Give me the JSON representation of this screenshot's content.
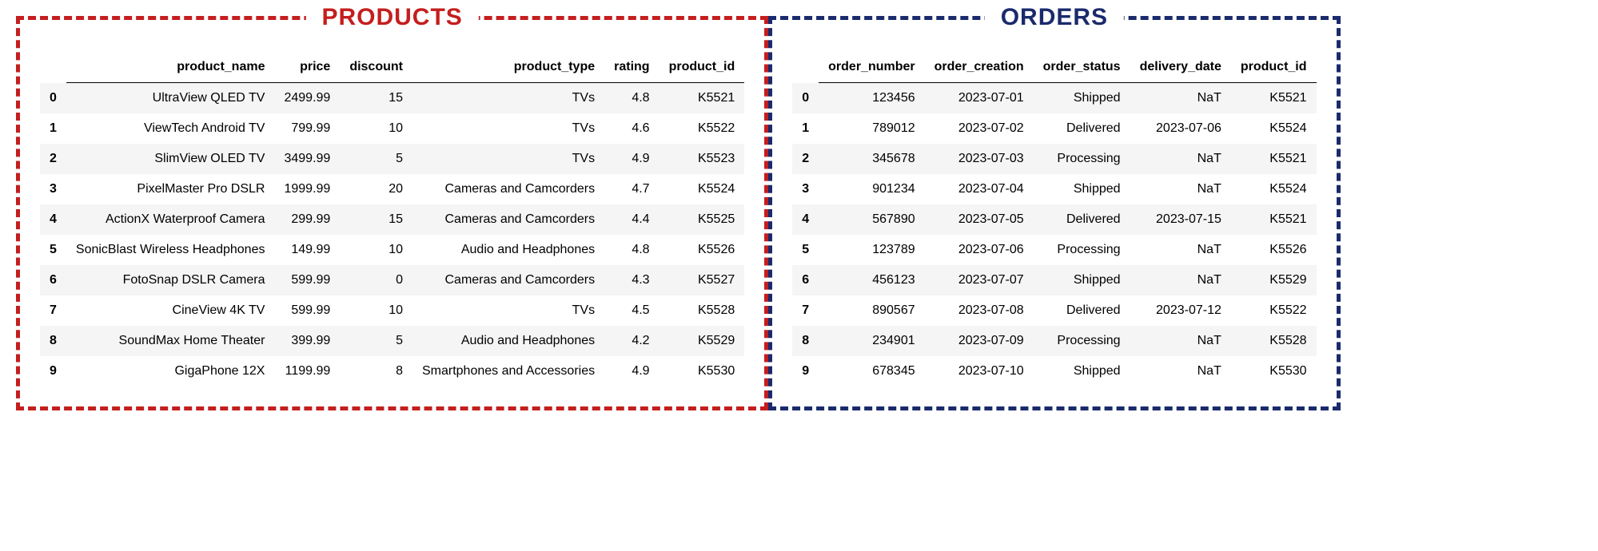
{
  "products_panel": {
    "title": "PRODUCTS",
    "border_color": "#c41e1e",
    "columns": [
      "product_name",
      "price",
      "discount",
      "product_type",
      "rating",
      "product_id"
    ],
    "rows": [
      {
        "idx": "0",
        "product_name": "UltraView QLED TV",
        "price": "2499.99",
        "discount": "15",
        "product_type": "TVs",
        "rating": "4.8",
        "product_id": "K5521"
      },
      {
        "idx": "1",
        "product_name": "ViewTech Android TV",
        "price": "799.99",
        "discount": "10",
        "product_type": "TVs",
        "rating": "4.6",
        "product_id": "K5522"
      },
      {
        "idx": "2",
        "product_name": "SlimView OLED TV",
        "price": "3499.99",
        "discount": "5",
        "product_type": "TVs",
        "rating": "4.9",
        "product_id": "K5523"
      },
      {
        "idx": "3",
        "product_name": "PixelMaster Pro DSLR",
        "price": "1999.99",
        "discount": "20",
        "product_type": "Cameras and Camcorders",
        "rating": "4.7",
        "product_id": "K5524"
      },
      {
        "idx": "4",
        "product_name": "ActionX Waterproof Camera",
        "price": "299.99",
        "discount": "15",
        "product_type": "Cameras and Camcorders",
        "rating": "4.4",
        "product_id": "K5525"
      },
      {
        "idx": "5",
        "product_name": "SonicBlast Wireless Headphones",
        "price": "149.99",
        "discount": "10",
        "product_type": "Audio and Headphones",
        "rating": "4.8",
        "product_id": "K5526"
      },
      {
        "idx": "6",
        "product_name": "FotoSnap DSLR Camera",
        "price": "599.99",
        "discount": "0",
        "product_type": "Cameras and Camcorders",
        "rating": "4.3",
        "product_id": "K5527"
      },
      {
        "idx": "7",
        "product_name": "CineView 4K TV",
        "price": "599.99",
        "discount": "10",
        "product_type": "TVs",
        "rating": "4.5",
        "product_id": "K5528"
      },
      {
        "idx": "8",
        "product_name": "SoundMax Home Theater",
        "price": "399.99",
        "discount": "5",
        "product_type": "Audio and Headphones",
        "rating": "4.2",
        "product_id": "K5529"
      },
      {
        "idx": "9",
        "product_name": "GigaPhone 12X",
        "price": "1199.99",
        "discount": "8",
        "product_type": "Smartphones and Accessories",
        "rating": "4.9",
        "product_id": "K5530"
      }
    ]
  },
  "orders_panel": {
    "title": "ORDERS",
    "border_color": "#1a2a6c",
    "columns": [
      "order_number",
      "order_creation",
      "order_status",
      "delivery_date",
      "product_id"
    ],
    "rows": [
      {
        "idx": "0",
        "order_number": "123456",
        "order_creation": "2023-07-01",
        "order_status": "Shipped",
        "delivery_date": "NaT",
        "product_id": "K5521"
      },
      {
        "idx": "1",
        "order_number": "789012",
        "order_creation": "2023-07-02",
        "order_status": "Delivered",
        "delivery_date": "2023-07-06",
        "product_id": "K5524"
      },
      {
        "idx": "2",
        "order_number": "345678",
        "order_creation": "2023-07-03",
        "order_status": "Processing",
        "delivery_date": "NaT",
        "product_id": "K5521"
      },
      {
        "idx": "3",
        "order_number": "901234",
        "order_creation": "2023-07-04",
        "order_status": "Shipped",
        "delivery_date": "NaT",
        "product_id": "K5524"
      },
      {
        "idx": "4",
        "order_number": "567890",
        "order_creation": "2023-07-05",
        "order_status": "Delivered",
        "delivery_date": "2023-07-15",
        "product_id": "K5521"
      },
      {
        "idx": "5",
        "order_number": "123789",
        "order_creation": "2023-07-06",
        "order_status": "Processing",
        "delivery_date": "NaT",
        "product_id": "K5526"
      },
      {
        "idx": "6",
        "order_number": "456123",
        "order_creation": "2023-07-07",
        "order_status": "Shipped",
        "delivery_date": "NaT",
        "product_id": "K5529"
      },
      {
        "idx": "7",
        "order_number": "890567",
        "order_creation": "2023-07-08",
        "order_status": "Delivered",
        "delivery_date": "2023-07-12",
        "product_id": "K5522"
      },
      {
        "idx": "8",
        "order_number": "234901",
        "order_creation": "2023-07-09",
        "order_status": "Processing",
        "delivery_date": "NaT",
        "product_id": "K5528"
      },
      {
        "idx": "9",
        "order_number": "678345",
        "order_creation": "2023-07-10",
        "order_status": "Shipped",
        "delivery_date": "NaT",
        "product_id": "K5530"
      }
    ]
  },
  "styling": {
    "row_odd_bg": "#f5f5f5",
    "row_even_bg": "#ffffff",
    "header_border": "#000000",
    "font_family": "Helvetica, Arial, sans-serif",
    "title_fontsize": 30,
    "cell_fontsize": 16
  }
}
